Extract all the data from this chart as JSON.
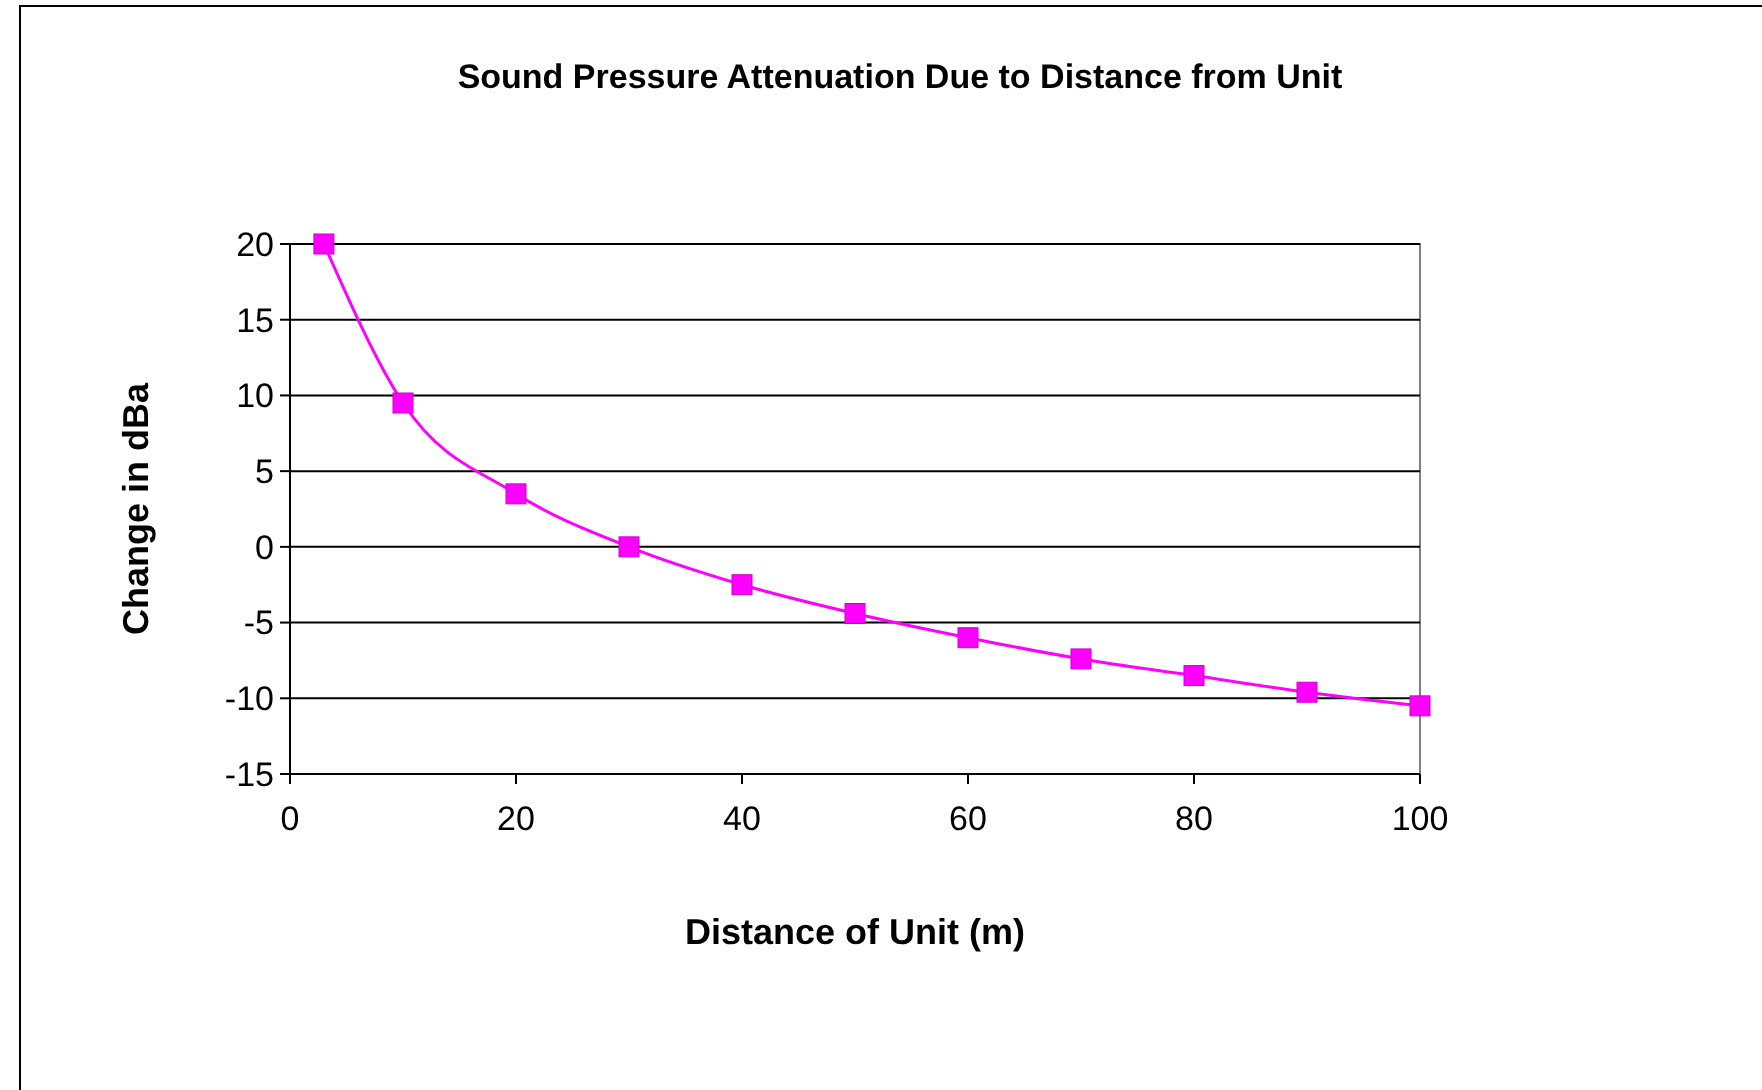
{
  "chart_data": {
    "type": "line",
    "title": "Sound Pressure Attenuation Due to Distance from Unit",
    "xlabel": "Distance of Unit (m)",
    "ylabel": "Change in dBa",
    "x": [
      3,
      10,
      20,
      30,
      40,
      50,
      60,
      70,
      80,
      90,
      100
    ],
    "series": [
      {
        "color": "#ff00ff",
        "values": [
          20,
          9.5,
          3.5,
          0,
          -2.5,
          -4.4,
          -6,
          -7.4,
          -8.5,
          -9.6,
          -10.5
        ]
      }
    ],
    "xlim": [
      0,
      100
    ],
    "xticks": [
      0,
      20,
      40,
      60,
      80,
      100
    ],
    "ylim": [
      -15,
      20
    ],
    "yticks": [
      -15,
      -10,
      -5,
      0,
      5,
      10,
      15,
      20
    ],
    "grid": "y",
    "marker": "square",
    "line_style": "solid"
  }
}
